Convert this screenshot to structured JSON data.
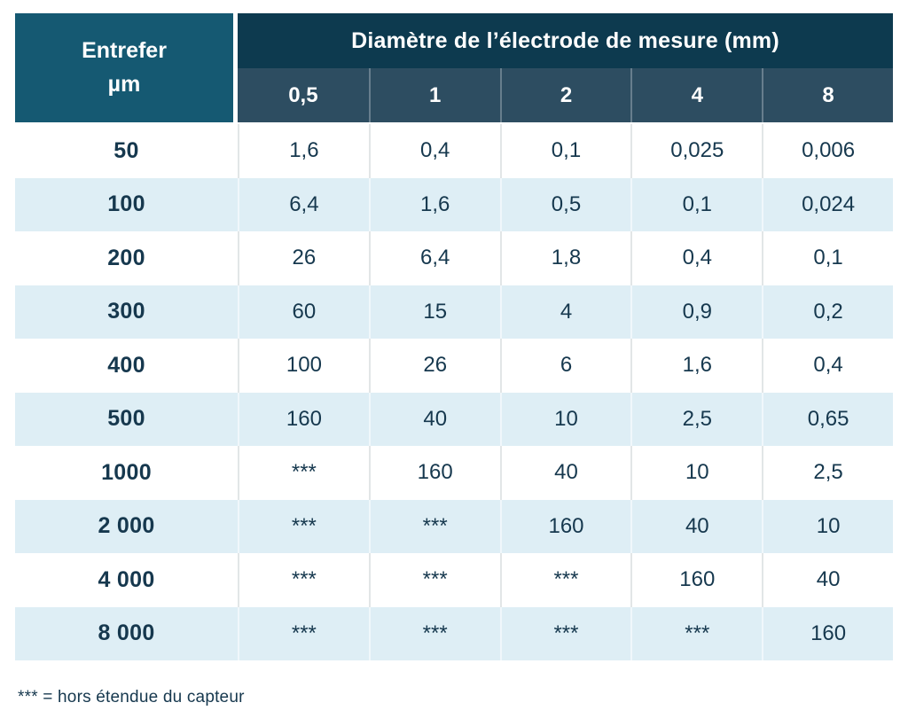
{
  "table": {
    "corner_header": {
      "line1": "Entrefer",
      "line2": "µm"
    },
    "main_header": "Diamètre de l’électrode de mesure (mm)",
    "column_headers": [
      "0,5",
      "1",
      "2",
      "4",
      "8"
    ],
    "rows": [
      {
        "label": "50",
        "values": [
          "1,6",
          "0,4",
          "0,1",
          "0,025",
          "0,006"
        ]
      },
      {
        "label": "100",
        "values": [
          "6,4",
          "1,6",
          "0,5",
          "0,1",
          "0,024"
        ]
      },
      {
        "label": "200",
        "values": [
          "26",
          "6,4",
          "1,8",
          "0,4",
          "0,1"
        ]
      },
      {
        "label": "300",
        "values": [
          "60",
          "15",
          "4",
          "0,9",
          "0,2"
        ]
      },
      {
        "label": "400",
        "values": [
          "100",
          "26",
          "6",
          "1,6",
          "0,4"
        ]
      },
      {
        "label": "500",
        "values": [
          "160",
          "40",
          "10",
          "2,5",
          "0,65"
        ]
      },
      {
        "label": "1000",
        "values": [
          "***",
          "160",
          "40",
          "10",
          "2,5"
        ]
      },
      {
        "label": "2 000",
        "values": [
          "***",
          "***",
          "160",
          "40",
          "10"
        ]
      },
      {
        "label": "4 000",
        "values": [
          "***",
          "***",
          "***",
          "160",
          "40"
        ]
      },
      {
        "label": "8 000",
        "values": [
          "***",
          "***",
          "***",
          "***",
          "160"
        ]
      }
    ],
    "footnote": "*** = hors étendue du capteur"
  },
  "colors": {
    "corner_cell": "#155972",
    "main_header": "#0D3A4F",
    "sub_header": "#2D4D61",
    "striped_row": "#DEEEF5",
    "text": "#16384E"
  },
  "chart_data": {
    "type": "table",
    "title": "Diamètre de l’électrode de mesure (mm)",
    "row_header": "Entrefer µm",
    "columns_mm": [
      0.5,
      1,
      2,
      4,
      8
    ],
    "rows": [
      {
        "entrefer_um": 50,
        "values": [
          1.6,
          0.4,
          0.1,
          0.025,
          0.006
        ]
      },
      {
        "entrefer_um": 100,
        "values": [
          6.4,
          1.6,
          0.5,
          0.1,
          0.024
        ]
      },
      {
        "entrefer_um": 200,
        "values": [
          26,
          6.4,
          1.8,
          0.4,
          0.1
        ]
      },
      {
        "entrefer_um": 300,
        "values": [
          60,
          15,
          4,
          0.9,
          0.2
        ]
      },
      {
        "entrefer_um": 400,
        "values": [
          100,
          26,
          6,
          1.6,
          0.4
        ]
      },
      {
        "entrefer_um": 500,
        "values": [
          160,
          40,
          10,
          2.5,
          0.65
        ]
      },
      {
        "entrefer_um": 1000,
        "values": [
          null,
          160,
          40,
          10,
          2.5
        ]
      },
      {
        "entrefer_um": 2000,
        "values": [
          null,
          null,
          160,
          40,
          10
        ]
      },
      {
        "entrefer_um": 4000,
        "values": [
          null,
          null,
          null,
          160,
          40
        ]
      },
      {
        "entrefer_um": 8000,
        "values": [
          null,
          null,
          null,
          null,
          160
        ]
      }
    ],
    "null_marker": "***",
    "null_meaning": "hors étendue du capteur"
  }
}
